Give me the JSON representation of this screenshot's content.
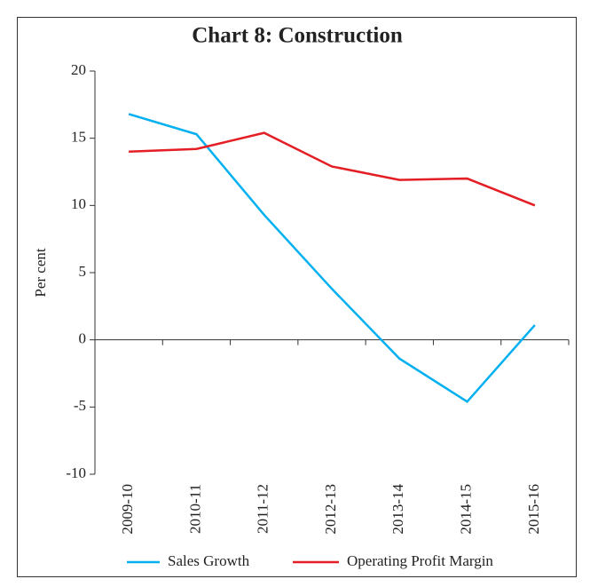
{
  "chart_data": {
    "type": "line",
    "title": "Chart 8: Construction",
    "y_label": "Per cent",
    "categories": [
      "2009-10",
      "2010-11",
      "2011-12",
      "2012-13",
      "2013-14",
      "2014-15",
      "2015-16"
    ],
    "series": [
      {
        "name": "Sales Growth",
        "color": "#00b0f0",
        "values": [
          16.8,
          15.3,
          9.3,
          3.8,
          -1.4,
          -4.6,
          1.1
        ]
      },
      {
        "name": "Operating Profit Margin",
        "color": "#e31e24",
        "values": [
          14.0,
          14.2,
          15.4,
          12.9,
          11.9,
          12.0,
          10.0
        ]
      }
    ],
    "ylim": [
      -10,
      20
    ],
    "yticks": [
      -10,
      -5,
      0,
      5,
      10,
      15,
      20
    ]
  }
}
